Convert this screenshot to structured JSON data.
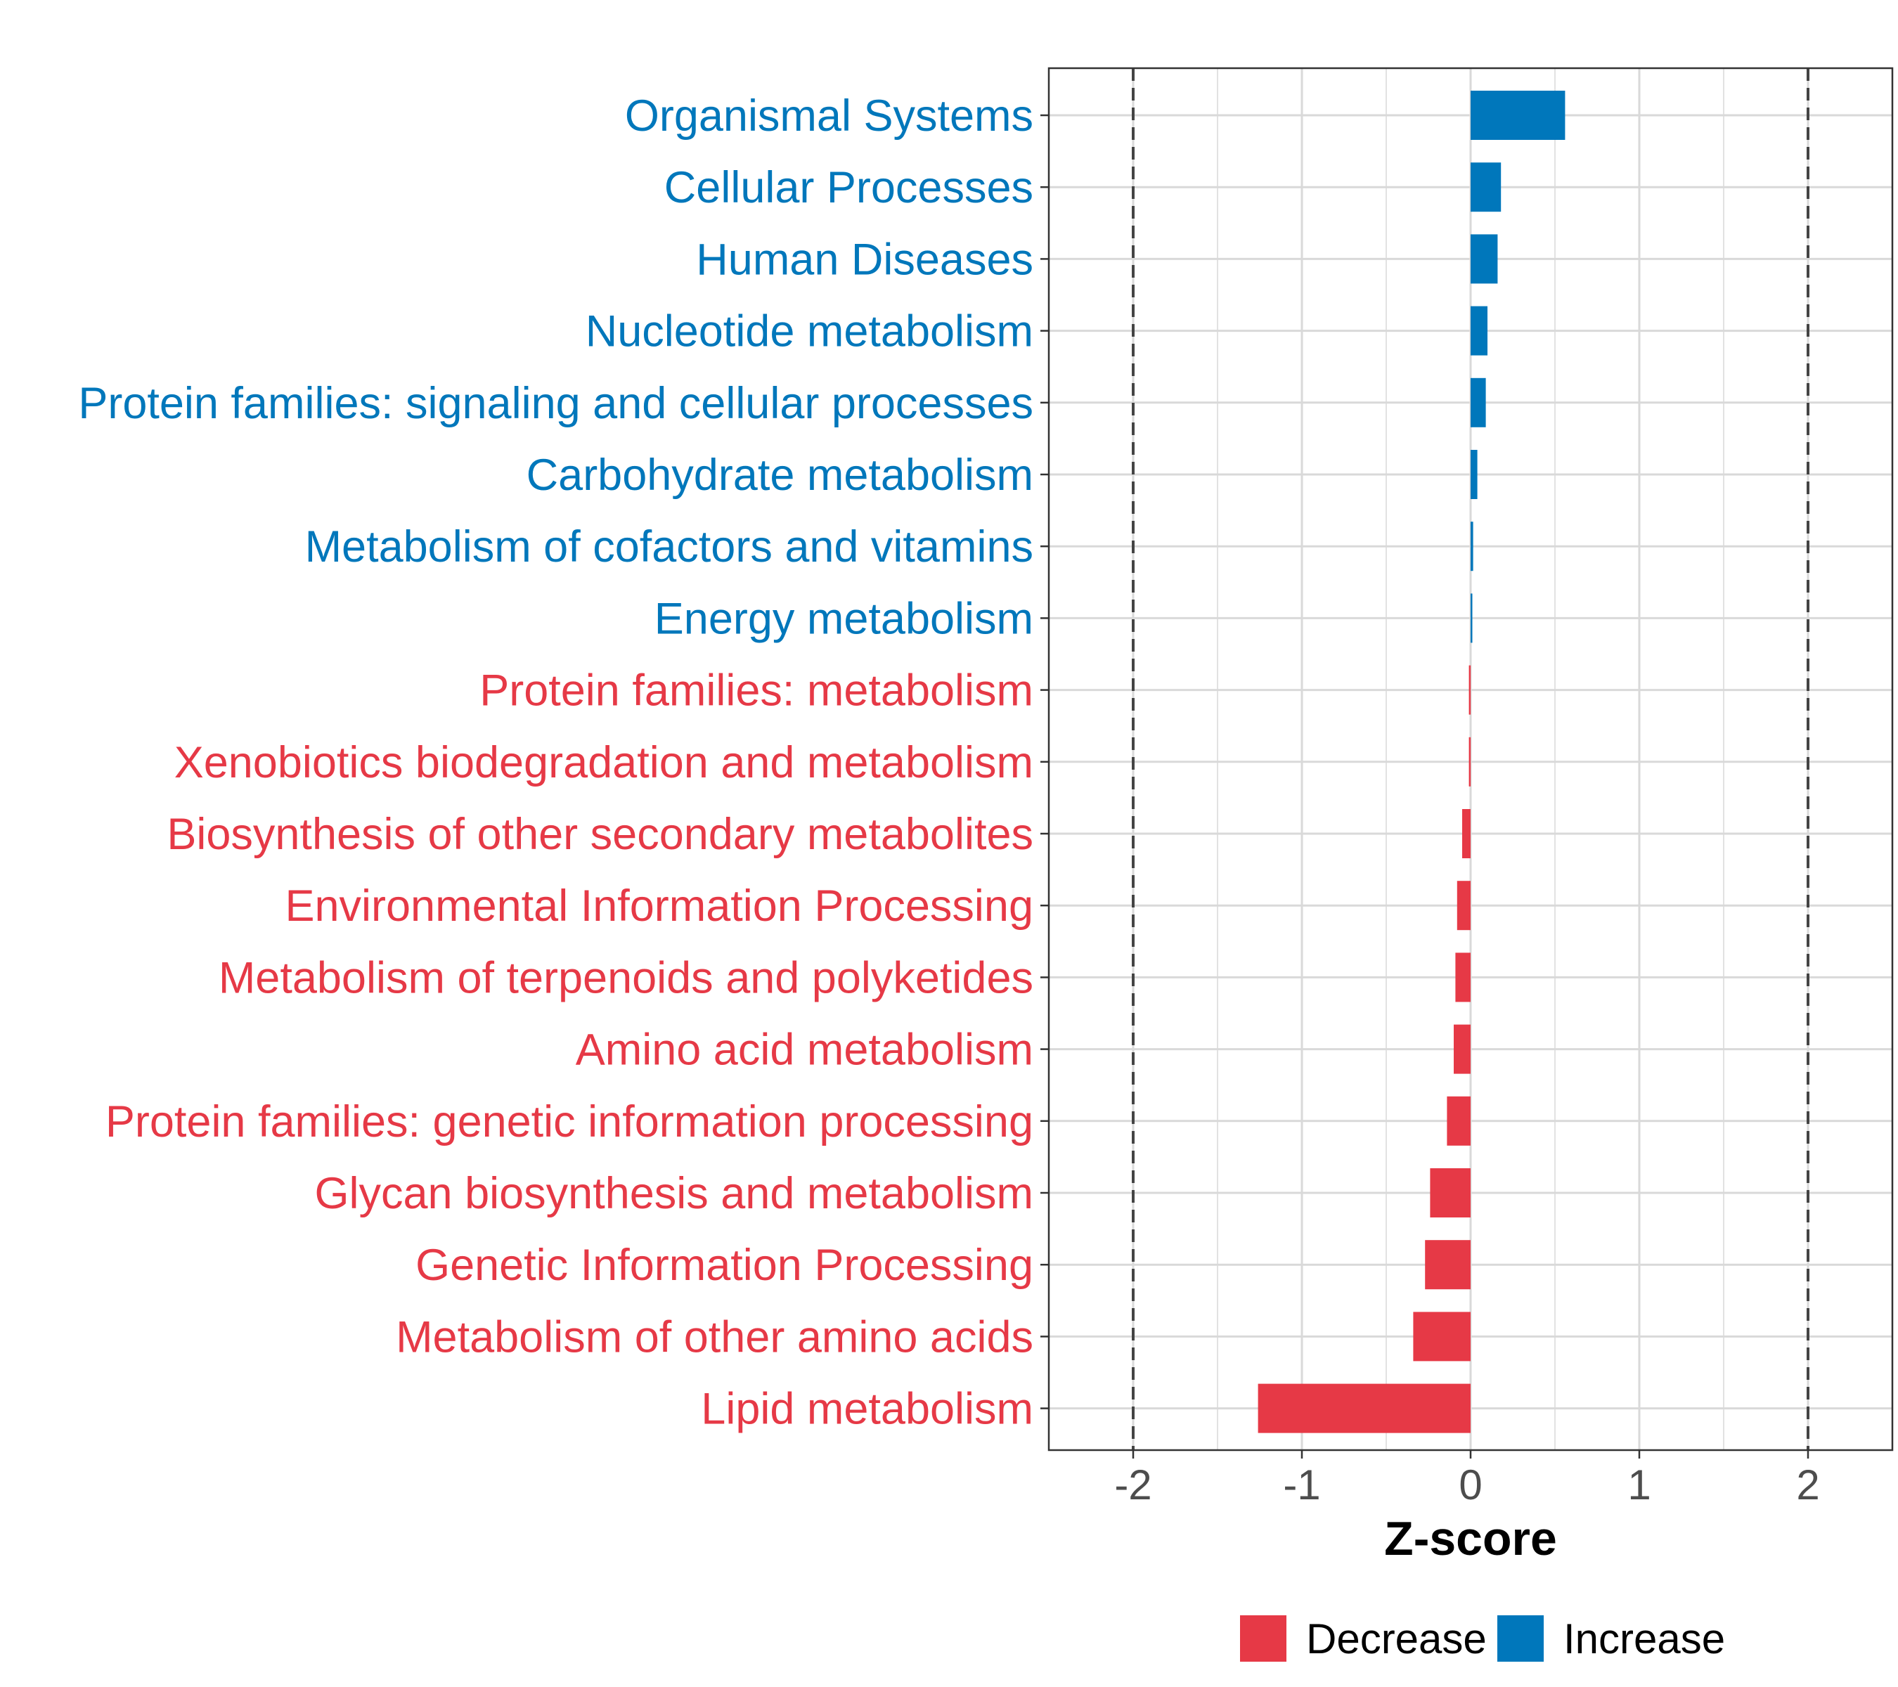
{
  "chart_data": {
    "type": "bar",
    "orientation": "horizontal",
    "xlabel": "Z-score",
    "ylabel": "",
    "xlim": [
      -2.5,
      2.5
    ],
    "xticks": [
      -2,
      -1,
      0,
      1,
      2
    ],
    "xtick_labels": [
      "-2",
      "-1",
      "0",
      "1",
      "2"
    ],
    "reference_lines": [
      -2,
      2
    ],
    "grid": true,
    "legend_position": "bottom",
    "colors": {
      "Decrease": "#e63946",
      "Increase": "#0077bb"
    },
    "legend": [
      "Decrease",
      "Increase"
    ],
    "categories": [
      "Organismal Systems",
      "Cellular Processes",
      "Human Diseases",
      "Nucleotide metabolism",
      "Protein families: signaling and cellular processes",
      "Carbohydrate metabolism",
      "Metabolism of cofactors and vitamins",
      "Energy metabolism",
      "Protein families: metabolism",
      "Xenobiotics biodegradation and metabolism",
      "Biosynthesis of other secondary metabolites",
      "Environmental Information Processing",
      "Metabolism of terpenoids and polyketides",
      "Amino acid metabolism",
      "Protein families: genetic information processing",
      "Glycan biosynthesis and metabolism",
      "Genetic Information Processing",
      "Metabolism of other amino acids",
      "Lipid metabolism"
    ],
    "values": [
      0.56,
      0.18,
      0.16,
      0.1,
      0.09,
      0.04,
      0.015,
      0.01,
      -0.01,
      -0.01,
      -0.05,
      -0.08,
      -0.09,
      -0.1,
      -0.14,
      -0.24,
      -0.27,
      -0.34,
      -1.26
    ],
    "groups": [
      "Increase",
      "Increase",
      "Increase",
      "Increase",
      "Increase",
      "Increase",
      "Increase",
      "Increase",
      "Decrease",
      "Decrease",
      "Decrease",
      "Decrease",
      "Decrease",
      "Decrease",
      "Decrease",
      "Decrease",
      "Decrease",
      "Decrease",
      "Decrease"
    ]
  }
}
